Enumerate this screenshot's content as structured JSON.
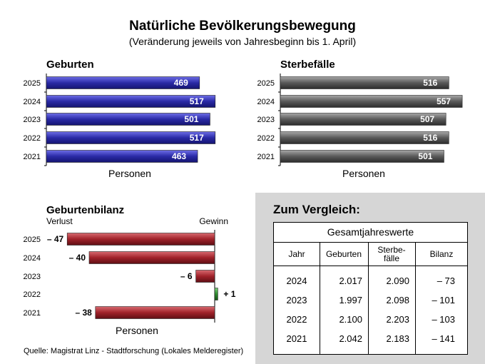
{
  "title": "Natürliche Bevölkerungsbewegung",
  "subtitle": "(Veränderung jeweils von Jahresbeginn bis 1. April)",
  "source": "Quelle: Magistrat Linz - Stadtforschung (Lokales Melderegister)",
  "colors": {
    "births": "#2a2aa6",
    "deaths": "#666666",
    "loss": "#a0222a",
    "gain": "#2e8b2e"
  },
  "chart_data": [
    {
      "type": "bar",
      "orientation": "horizontal",
      "title": "Geburten",
      "xlabel": "Personen",
      "categories": [
        "2025",
        "2024",
        "2023",
        "2022",
        "2021"
      ],
      "values": [
        469,
        517,
        501,
        517,
        463
      ],
      "value_labels": [
        "469",
        "517",
        "501",
        "517",
        "463"
      ],
      "xlim": [
        0,
        620
      ]
    },
    {
      "type": "bar",
      "orientation": "horizontal",
      "title": "Sterbefälle",
      "xlabel": "Personen",
      "categories": [
        "2025",
        "2024",
        "2023",
        "2022",
        "2021"
      ],
      "values": [
        516,
        557,
        507,
        516,
        501
      ],
      "value_labels": [
        "516",
        "557",
        "507",
        "516",
        "501"
      ],
      "xlim": [
        0,
        620
      ]
    },
    {
      "type": "bar",
      "orientation": "horizontal",
      "title": "Geburtenbilanz",
      "xlabel": "Personen",
      "left_label": "Verlust",
      "right_label": "Gewinn",
      "categories": [
        "2025",
        "2024",
        "2023",
        "2022",
        "2021"
      ],
      "values": [
        -47,
        -40,
        -6,
        1,
        -38
      ],
      "value_labels": [
        "– 47",
        "– 40",
        "– 6",
        "+ 1",
        "– 38"
      ],
      "xlim": [
        -50,
        5
      ]
    }
  ],
  "comparison": {
    "heading": "Zum Vergleich:",
    "caption": "Gesamtjahreswerte",
    "columns": [
      "Jahr",
      "Geburten",
      "Sterbe-\nfälle",
      "Bilanz"
    ],
    "rows": [
      [
        "2024",
        "2.017",
        "2.090",
        "– 73"
      ],
      [
        "2023",
        "1.997",
        "2.098",
        "– 101"
      ],
      [
        "2022",
        "2.100",
        "2.203",
        "– 103"
      ],
      [
        "2021",
        "2.042",
        "2.183",
        "– 141"
      ]
    ]
  }
}
